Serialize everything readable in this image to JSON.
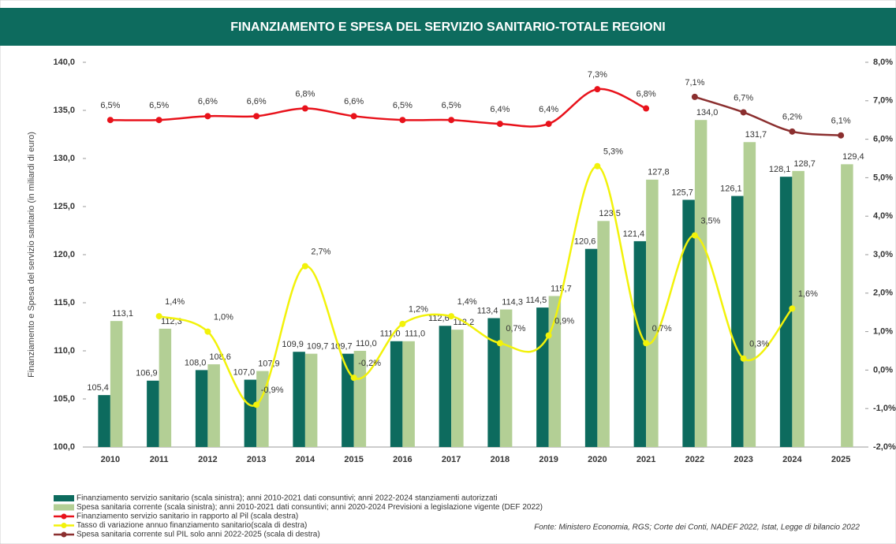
{
  "chart_data": {
    "type": "bar-line",
    "title": "FINANZIAMENTO E SPESA DEL SERVIZIO SANITARIO-TOTALE REGIONI",
    "y_label": "Finanziamento e Spesa del servizio sanitario (in miliardi di euro)",
    "source": "Fonte: Ministero Economia, RGS; Corte dei Conti, NADEF 2022, Istat, Legge di bilancio 2022",
    "categories": [
      "2010",
      "2011",
      "2012",
      "2013",
      "2014",
      "2015",
      "2016",
      "2017",
      "2018",
      "2019",
      "2020",
      "2021",
      "2022",
      "2023",
      "2024",
      "2025"
    ],
    "ylim": [
      100,
      140
    ],
    "yticks": [
      {
        "value": 100,
        "label": "100,0"
      },
      {
        "value": 105,
        "label": "105,0"
      },
      {
        "value": 110,
        "label": "110,0"
      },
      {
        "value": 115,
        "label": "115,0"
      },
      {
        "value": 120,
        "label": "120,0"
      },
      {
        "value": 125,
        "label": "125,0"
      },
      {
        "value": 130,
        "label": "130,0"
      },
      {
        "value": 135,
        "label": "135,0"
      },
      {
        "value": 140,
        "label": "140,0"
      }
    ],
    "y2lim": [
      -2,
      8
    ],
    "y2ticks": [
      {
        "value": -2,
        "label": "-2,0%"
      },
      {
        "value": -1,
        "label": "-1,0%"
      },
      {
        "value": 0,
        "label": "0,0%"
      },
      {
        "value": 1,
        "label": "1,0%"
      },
      {
        "value": 2,
        "label": "2,0%"
      },
      {
        "value": 3,
        "label": "3,0%"
      },
      {
        "value": 4,
        "label": "4,0%"
      },
      {
        "value": 5,
        "label": "5,0%"
      },
      {
        "value": 6,
        "label": "6,0%"
      },
      {
        "value": 7,
        "label": "7,0%"
      },
      {
        "value": 8,
        "label": "8,0%"
      }
    ],
    "grid": false,
    "series": [
      {
        "name": "Finanziamento servizio sanitario (scala sinistra); anni 2010-2021 dati consuntivi; anni 2022-2024 stanziamenti autorizzati",
        "kind": "bar",
        "color": "#0d6b5e",
        "values": [
          105.4,
          106.9,
          108.0,
          107.0,
          109.9,
          109.7,
          111.0,
          112.6,
          113.4,
          114.5,
          120.6,
          121.4,
          125.7,
          126.1,
          128.1,
          null
        ],
        "value_labels": [
          "105,4",
          "106,9",
          "108,0",
          "107,0",
          "109,9",
          "109,7",
          "111,0",
          "112,6",
          "113,4",
          "114,5",
          "120,6",
          "121,4",
          "125,7",
          "126,1",
          "128,1",
          null
        ]
      },
      {
        "name": "Spesa sanitaria corrente (scala sinistra); anni 2010-2021 dati consuntivi; anni 2020-2024 Previsioni a legislazione vigente (DEF 2022)",
        "kind": "bar",
        "color": "#b3cf95",
        "values": [
          113.1,
          112.3,
          108.6,
          107.9,
          109.7,
          110.0,
          111.0,
          112.2,
          114.3,
          115.7,
          123.5,
          127.8,
          134.0,
          131.7,
          128.7,
          129.4
        ],
        "value_labels": [
          "113,1",
          "112,3",
          "108,6",
          "107,9",
          "109,7",
          "110,0",
          "111,0",
          "112,2",
          "114,3",
          "115,7",
          "123,5",
          "127,8",
          "134,0",
          "131,7",
          "128,7",
          "129,4"
        ]
      },
      {
        "name": "Finanziamento servizio sanitario in rapporto al Pil (scala destra)",
        "kind": "line",
        "axis": "y2",
        "color": "#e8121b",
        "values": [
          6.5,
          6.5,
          6.6,
          6.6,
          6.8,
          6.6,
          6.5,
          6.5,
          6.4,
          6.4,
          7.3,
          6.8,
          null,
          null,
          null,
          null
        ],
        "value_labels": [
          "6,5%",
          "6,5%",
          "6,6%",
          "6,6%",
          "6,8%",
          "6,6%",
          "6,5%",
          "6,5%",
          "6,4%",
          "6,4%",
          "7,3%",
          "6,8%",
          null,
          null,
          null,
          null
        ]
      },
      {
        "name": "Tasso di variazione annuo finanziamento sanitario(scala di destra)",
        "kind": "line",
        "axis": "y2",
        "color": "#f2f20a",
        "values": [
          null,
          1.4,
          1.0,
          -0.9,
          2.7,
          -0.2,
          1.2,
          1.4,
          0.7,
          0.9,
          5.3,
          0.7,
          3.5,
          0.3,
          1.6,
          null
        ],
        "value_labels": [
          null,
          "1,4%",
          "1,0%",
          "-0,9%",
          "2,7%",
          "-0,2%",
          "1,2%",
          "1,4%",
          "0,7%",
          "0,9%",
          "5,3%",
          "0,7%",
          "3,5%",
          "0,3%",
          "1,6%",
          null
        ]
      },
      {
        "name": "Spesa sanitaria corrente sul PIL solo anni 2022-2025 (scala di destra)",
        "kind": "line",
        "axis": "y2",
        "color": "#8b2f2f",
        "values": [
          null,
          null,
          null,
          null,
          null,
          null,
          null,
          null,
          null,
          null,
          null,
          null,
          7.1,
          6.7,
          6.2,
          6.1
        ],
        "value_labels": [
          null,
          null,
          null,
          null,
          null,
          null,
          null,
          null,
          null,
          null,
          null,
          null,
          "7,1%",
          "6,7%",
          "6,2%",
          "6,1%"
        ]
      }
    ]
  }
}
